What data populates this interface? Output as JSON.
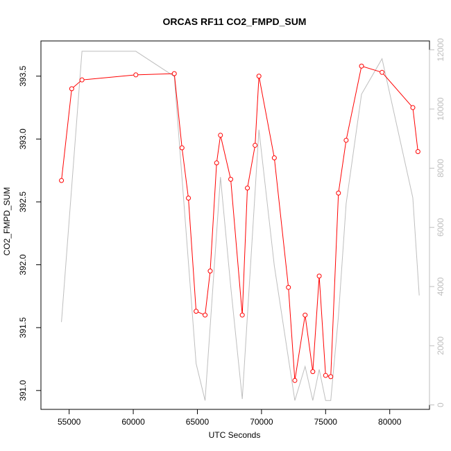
{
  "chart_data": {
    "type": "line",
    "title": "ORCAS RF11 CO2_FMPD_SUM",
    "xlabel": "UTC Seconds",
    "ylabel": "CO2_FMPD_SUM",
    "xlim": [
      52800,
      83100
    ],
    "ylim": [
      390.85,
      393.78
    ],
    "y2lim": [
      -150,
      12300
    ],
    "x_ticks": [
      55000,
      60000,
      65000,
      70000,
      75000,
      80000
    ],
    "x_tick_labels": [
      "55000",
      "60000",
      "65000",
      "70000",
      "75000",
      "80000"
    ],
    "y_ticks": [
      391.0,
      391.5,
      392.0,
      392.5,
      393.0,
      393.5
    ],
    "y_tick_labels": [
      "391.0",
      "391.5",
      "392.0",
      "392.5",
      "393.0",
      "393.5"
    ],
    "y2_ticks": [
      0,
      2000,
      4000,
      6000,
      8000,
      10000,
      12000
    ],
    "y2_tick_labels": [
      "0",
      "2000",
      "4000",
      "6000",
      "8000",
      "10000",
      "12000"
    ],
    "grid": false,
    "series": [
      {
        "color": "#ff0000",
        "axis": "left",
        "marker": "open-circle",
        "x": [
          54400,
          55200,
          56000,
          60200,
          63200,
          63800,
          64300,
          64900,
          65600,
          66000,
          66500,
          66800,
          67600,
          68500,
          68900,
          69500,
          69800,
          71000,
          72100,
          72600,
          73400,
          74000,
          74500,
          75000,
          75400,
          76000,
          76600,
          77800,
          79400,
          81800,
          82200
        ],
        "y": [
          392.67,
          393.4,
          393.47,
          393.51,
          393.52,
          392.93,
          392.53,
          391.63,
          391.6,
          391.95,
          392.81,
          393.03,
          392.68,
          391.6,
          392.61,
          392.95,
          393.5,
          392.85,
          391.82,
          391.08,
          391.6,
          391.15,
          391.91,
          391.12,
          391.11,
          392.57,
          392.99,
          393.58,
          393.53,
          393.25,
          392.9
        ]
      },
      {
        "color": "#bebebe",
        "axis": "right",
        "marker": "none",
        "x": [
          54400,
          56000,
          60200,
          63200,
          64900,
          65600,
          66800,
          67600,
          68500,
          69800,
          71000,
          72600,
          73400,
          74000,
          74500,
          75000,
          75400,
          76000,
          76600,
          77800,
          79400,
          81800,
          82300
        ],
        "y": [
          2800,
          11950,
          11950,
          11100,
          1400,
          150,
          7700,
          4000,
          200,
          9300,
          4700,
          150,
          1300,
          150,
          1200,
          150,
          150,
          3000,
          6800,
          10500,
          11700,
          7000,
          3700
        ]
      }
    ]
  }
}
